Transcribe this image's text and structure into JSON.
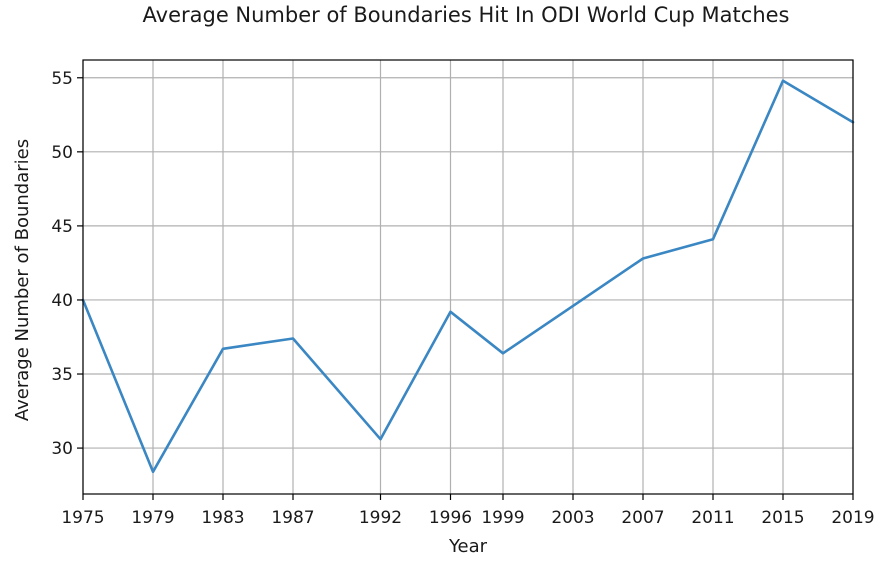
{
  "chart_data": {
    "type": "line",
    "title": "Average Number of Boundaries Hit In ODI World Cup Matches",
    "xlabel": "Year",
    "ylabel": "Average Number of Boundaries",
    "x": [
      1975,
      1979,
      1983,
      1987,
      1992,
      1996,
      1999,
      2003,
      2007,
      2011,
      2015,
      2019
    ],
    "series": [
      {
        "values": [
          40.0,
          28.4,
          36.7,
          37.4,
          30.6,
          39.2,
          36.4,
          39.6,
          42.8,
          44.1,
          54.8,
          52.0
        ]
      }
    ],
    "xticks": [
      1975,
      1979,
      1983,
      1987,
      1992,
      1996,
      1999,
      2003,
      2007,
      2011,
      2015,
      2019
    ],
    "yticks": [
      30,
      35,
      40,
      45,
      50,
      55
    ],
    "xlim": [
      1975,
      2019
    ],
    "ylim": [
      26.9,
      56.2
    ],
    "grid": true,
    "colors": {
      "line": "#3a87c3",
      "grid": "#b0b0b0"
    }
  }
}
